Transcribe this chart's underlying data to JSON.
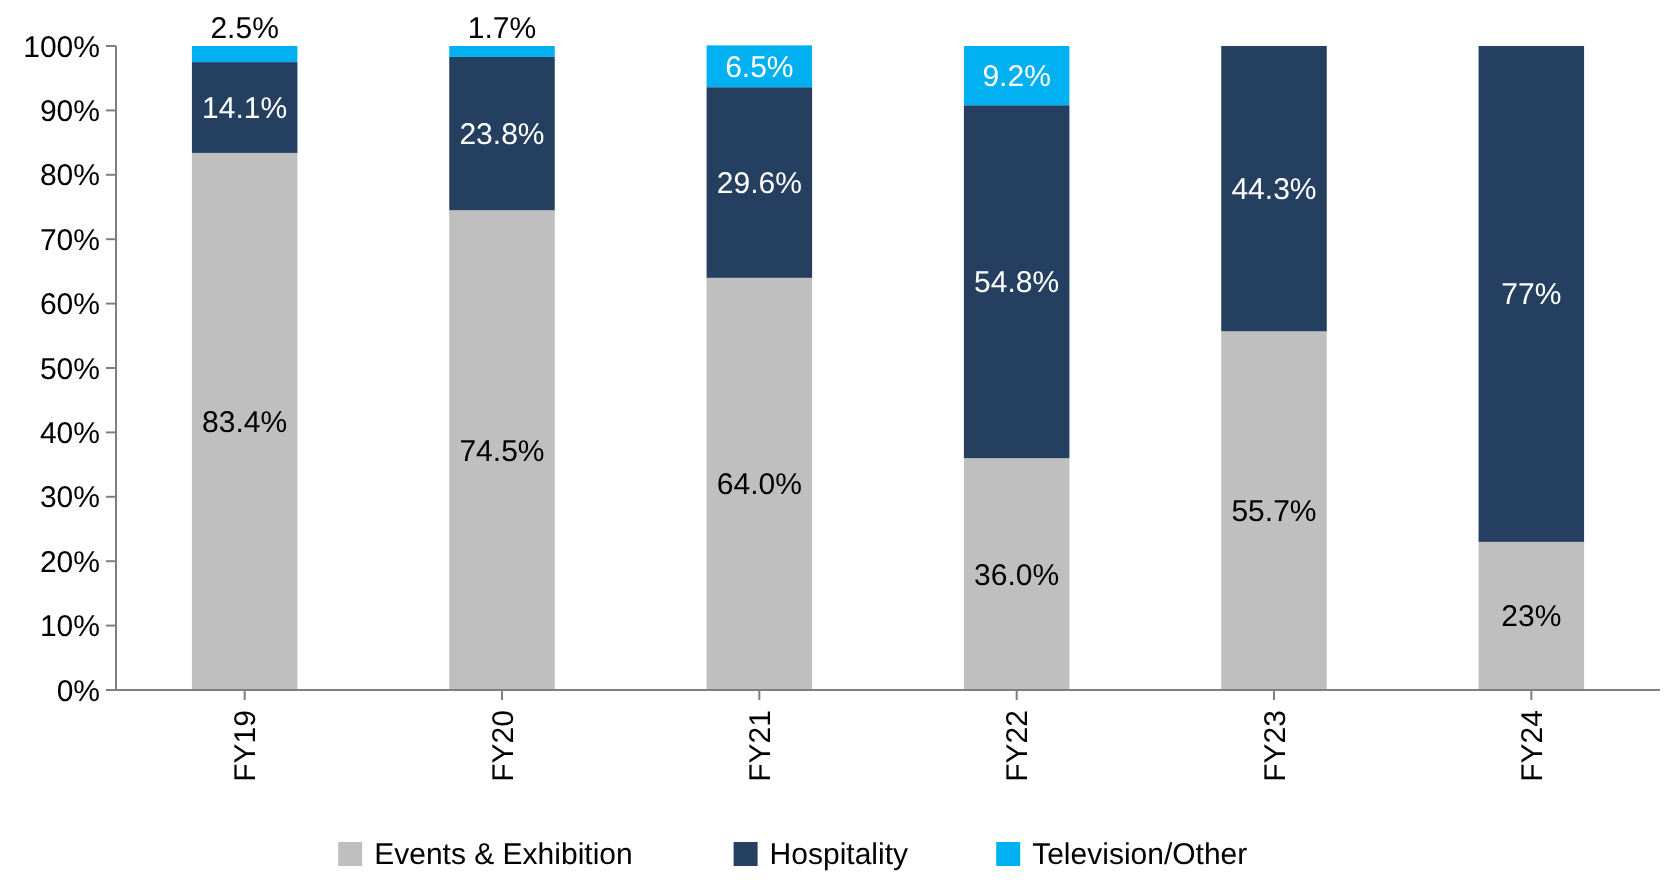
{
  "chart_data": {
    "type": "bar",
    "stacked": true,
    "categories": [
      "FY19",
      "FY20",
      "FY21",
      "FY22",
      "FY23",
      "FY24"
    ],
    "series": [
      {
        "name": "Events & Exhibition",
        "color": "#bfbfbf",
        "values": [
          83.4,
          74.5,
          64.0,
          36.0,
          55.7,
          23
        ],
        "value_labels": [
          "83.4%",
          "74.5%",
          "64.0%",
          "36.0%",
          "55.7%",
          "23%"
        ]
      },
      {
        "name": "Hospitality",
        "color": "#243f60",
        "values": [
          14.1,
          23.8,
          29.6,
          54.8,
          44.3,
          77
        ],
        "value_labels": [
          "14.1%",
          "23.8%",
          "29.6%",
          "54.8%",
          "44.3%",
          "77%"
        ]
      },
      {
        "name": "Television/Other",
        "color": "#00b0f0",
        "values": [
          2.5,
          1.7,
          6.5,
          9.2,
          null,
          null
        ],
        "value_labels": [
          "2.5%",
          "1.7%",
          "6.5%",
          "9.2%",
          null,
          null
        ]
      }
    ],
    "ylim": [
      0,
      100
    ],
    "yticks": [
      {
        "value": 0,
        "label": "0%"
      },
      {
        "value": 10,
        "label": "10%"
      },
      {
        "value": 20,
        "label": "20%"
      },
      {
        "value": 30,
        "label": "30%"
      },
      {
        "value": 40,
        "label": "40%"
      },
      {
        "value": 50,
        "label": "50%"
      },
      {
        "value": 60,
        "label": "60%"
      },
      {
        "value": 70,
        "label": "70%"
      },
      {
        "value": 80,
        "label": "80%"
      },
      {
        "value": 90,
        "label": "90%"
      },
      {
        "value": 100,
        "label": "100%"
      }
    ],
    "grid": false,
    "legend": "bottom"
  }
}
